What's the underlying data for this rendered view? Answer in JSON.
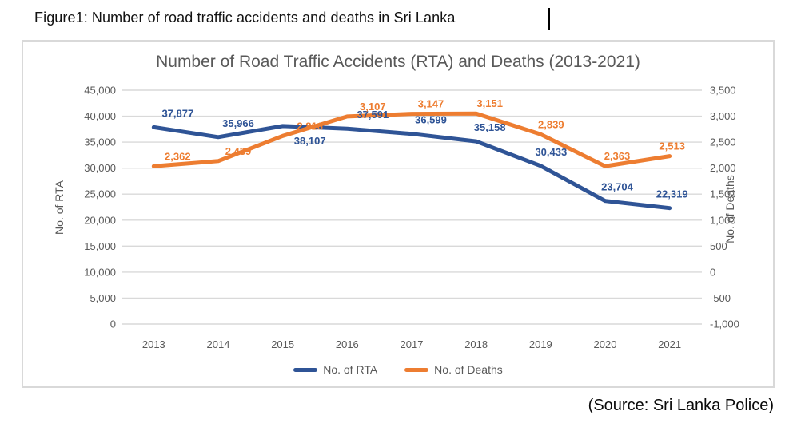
{
  "page": {
    "caption": "Figure1: Number of road traffic accidents and deaths in Sri Lanka",
    "source": "(Source: Sri Lanka Police)"
  },
  "chart_data": {
    "type": "line",
    "title": "Number of Road Traffic Accidents (RTA) and Deaths (2013-2021)",
    "categories": [
      "2013",
      "2014",
      "2015",
      "2016",
      "2017",
      "2018",
      "2019",
      "2020",
      "2021"
    ],
    "series": [
      {
        "name": "No. of RTA",
        "axis": "left",
        "color": "#2F5496",
        "values": [
          37877,
          35966,
          38107,
          37591,
          36599,
          35158,
          30433,
          23704,
          22319
        ]
      },
      {
        "name": "No. of Deaths",
        "axis": "right",
        "color": "#ED7D31",
        "values": [
          2362,
          2439,
          2816,
          3107,
          3147,
          3151,
          2839,
          2363,
          2513
        ]
      }
    ],
    "left_axis": {
      "title": "No. of RTA",
      "min": 0,
      "max": 45000,
      "step": 5000
    },
    "right_axis": {
      "title": "No. of Deaths",
      "min": 0,
      "max": 3500,
      "step": 500
    },
    "legend": {
      "position": "bottom",
      "entries": [
        "No. of RTA",
        "No. of Deaths"
      ]
    },
    "grid": true,
    "data_labels": true,
    "colors": {
      "gridline": "#D9D9D9",
      "axis_text": "#595959",
      "title_text": "#595959",
      "frame_border": "#D9D9D9"
    }
  }
}
